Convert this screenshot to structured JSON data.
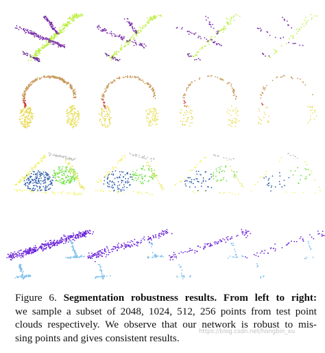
{
  "caption": {
    "label": "Figure 6.",
    "bold": "Segmentation robustness results. From left to right:",
    "lines": [
      "we sample a subset of 2048, 1024, 512, 256 points from test point",
      "clouds respectively. We observe that our network is robust to mis-",
      "sing points and gives consistent results."
    ]
  },
  "watermark": "https://blog.csdn.net/hongbin_xu"
}
